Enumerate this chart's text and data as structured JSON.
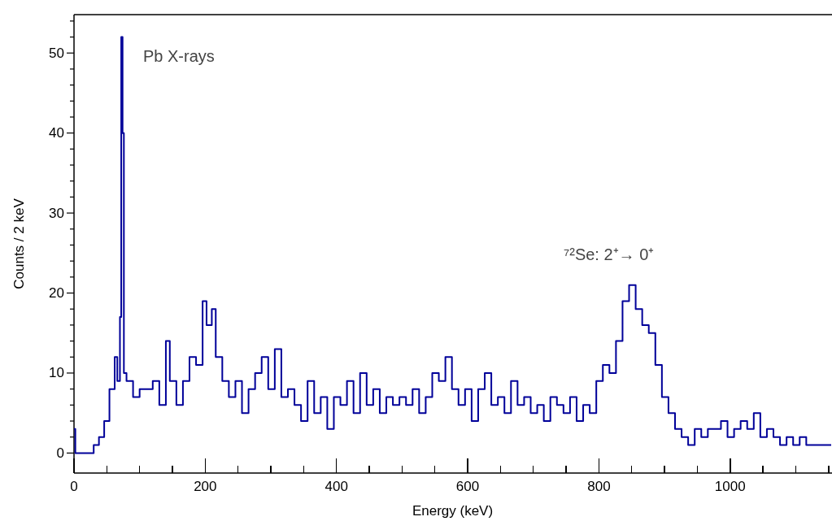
{
  "chart_data": {
    "type": "step",
    "xlabel": "Energy (keV)",
    "ylabel": "Counts / 2 keV",
    "color": "#000099",
    "x": [
      0,
      2,
      30,
      38,
      46,
      54,
      62,
      66,
      70,
      72,
      74,
      76,
      80,
      90,
      100,
      110,
      120,
      130,
      140,
      146,
      156,
      166,
      176,
      186,
      196,
      202,
      210,
      216,
      226,
      236,
      246,
      256,
      266,
      276,
      286,
      296,
      306,
      316,
      326,
      336,
      346,
      356,
      366,
      376,
      386,
      396,
      406,
      416,
      426,
      436,
      446,
      456,
      466,
      476,
      486,
      496,
      506,
      516,
      526,
      536,
      546,
      556,
      566,
      576,
      586,
      596,
      606,
      616,
      626,
      636,
      646,
      656,
      666,
      676,
      686,
      696,
      706,
      716,
      726,
      736,
      746,
      756,
      766,
      776,
      786,
      796,
      806,
      816,
      826,
      836,
      846,
      856,
      866,
      876,
      886,
      896,
      906,
      916,
      926,
      936,
      946,
      956,
      966,
      976,
      986,
      996,
      1006,
      1016,
      1026,
      1036,
      1046,
      1056,
      1066,
      1076,
      1086,
      1096,
      1106,
      1116,
      1126,
      1136,
      1146,
      1154
    ],
    "values": [
      3,
      0,
      1,
      2,
      4,
      8,
      12,
      9,
      17,
      52,
      40,
      10,
      9,
      7,
      8,
      8,
      9,
      6,
      14,
      9,
      6,
      9,
      12,
      11,
      19,
      16,
      18,
      12,
      9,
      7,
      9,
      5,
      8,
      10,
      12,
      8,
      13,
      7,
      8,
      6,
      4,
      9,
      5,
      7,
      3,
      7,
      6,
      9,
      5,
      10,
      6,
      8,
      5,
      7,
      6,
      7,
      6,
      8,
      5,
      7,
      10,
      9,
      12,
      8,
      6,
      8,
      4,
      8,
      10,
      6,
      7,
      5,
      9,
      6,
      7,
      5,
      6,
      4,
      7,
      6,
      5,
      7,
      4,
      6,
      5,
      9,
      11,
      10,
      14,
      19,
      21,
      18,
      16,
      15,
      11,
      7,
      5,
      3,
      2,
      1,
      3,
      2,
      3,
      3,
      4,
      2,
      3,
      4,
      3,
      5,
      2,
      3,
      2,
      1,
      2,
      1,
      2,
      1,
      1,
      1,
      1,
      1
    ],
    "xlim": [
      0,
      1154
    ],
    "ylim": [
      -2.5,
      54.8
    ],
    "xticks": [
      0,
      {
        "value": 50,
        "label": null
      },
      200,
      {
        "value": 100,
        "label": null
      },
      {
        "value": 150,
        "label": null
      },
      {
        "value": 250,
        "label": null
      },
      {
        "value": 300,
        "label": null
      },
      {
        "value": 350,
        "label": null
      },
      400,
      {
        "value": 450,
        "label": null
      },
      {
        "value": 500,
        "label": null
      },
      {
        "value": 550,
        "label": null
      },
      600,
      {
        "value": 650,
        "label": null
      },
      {
        "value": 700,
        "label": null
      },
      {
        "value": 750,
        "label": null
      },
      800,
      {
        "value": 850,
        "label": null
      },
      {
        "value": 900,
        "label": null
      },
      {
        "value": 950,
        "label": null
      },
      1000,
      {
        "value": 1050,
        "label": null
      },
      {
        "value": 1100,
        "label": null
      },
      {
        "value": 1150,
        "label": null
      }
    ],
    "yticks": [
      0,
      {
        "value": 2,
        "label": null
      },
      {
        "value": 4,
        "label": null
      },
      {
        "value": 6,
        "label": null
      },
      {
        "value": 8,
        "label": null
      },
      10,
      {
        "value": 12,
        "label": null
      },
      {
        "value": 14,
        "label": null
      },
      {
        "value": 16,
        "label": null
      },
      {
        "value": 18,
        "label": null
      },
      20,
      {
        "value": 22,
        "label": null
      },
      {
        "value": 24,
        "label": null
      },
      {
        "value": 26,
        "label": null
      },
      {
        "value": 28,
        "label": null
      },
      30,
      {
        "value": 32,
        "label": null
      },
      {
        "value": 34,
        "label": null
      },
      {
        "value": 36,
        "label": null
      },
      {
        "value": 38,
        "label": null
      },
      40,
      {
        "value": 42,
        "label": null
      },
      {
        "value": 44,
        "label": null
      },
      {
        "value": 46,
        "label": null
      },
      {
        "value": 48,
        "label": null
      },
      50,
      {
        "value": 52,
        "label": null
      },
      {
        "value": 54,
        "label": null
      }
    ],
    "annotations": [
      "Pb X-rays",
      "⁷²Se: 2⁺→ 0⁺"
    ]
  }
}
